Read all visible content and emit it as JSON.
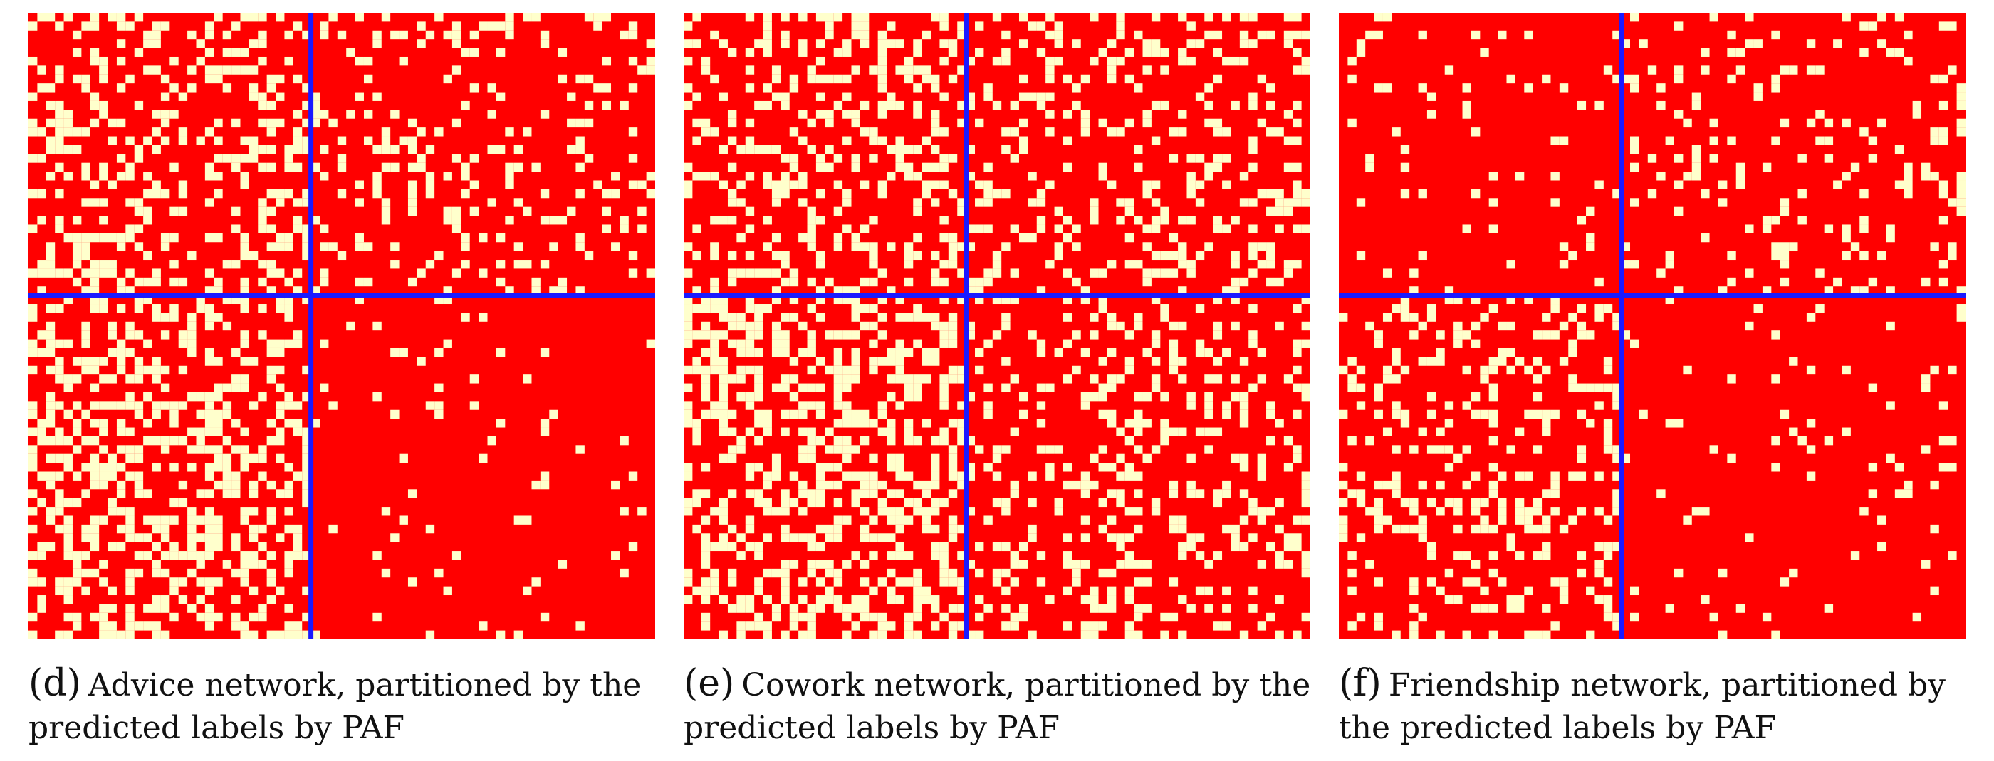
{
  "colors": {
    "background": "#ff0000",
    "edge": "#ffffcc",
    "divider": "#1a1aff"
  },
  "panels": [
    {
      "label": "(d)",
      "caption": "Advice network, partitioned by the predicted labels by PAF"
    },
    {
      "label": "(e)",
      "caption": "Cowork network,  partitioned by the predicted labels by PAF"
    },
    {
      "label": "(f)",
      "caption": "Friendship network, partitioned by the predicted labels by PAF"
    }
  ],
  "chart_data": [
    {
      "type": "heatmap",
      "title": "",
      "n": 71,
      "split": 32,
      "block_density": [
        [
          0.35,
          0.18
        ],
        [
          0.38,
          0.05
        ]
      ],
      "seed": 11
    },
    {
      "type": "heatmap",
      "title": "",
      "n": 71,
      "split": 32,
      "block_density": [
        [
          0.3,
          0.22
        ],
        [
          0.42,
          0.24
        ]
      ],
      "seed": 23
    },
    {
      "type": "heatmap",
      "title": "",
      "n": 71,
      "split": 32,
      "block_density": [
        [
          0.06,
          0.14
        ],
        [
          0.26,
          0.05
        ]
      ],
      "seed": 37
    }
  ]
}
